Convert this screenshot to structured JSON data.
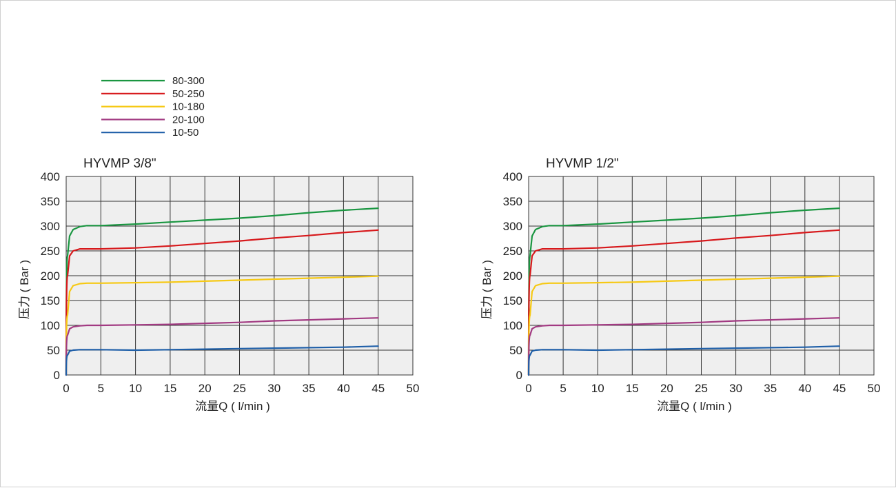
{
  "legend": [
    {
      "label": "80-300",
      "color": "#1a9641"
    },
    {
      "label": "50-250",
      "color": "#d7191c"
    },
    {
      "label": "10-180",
      "color": "#f6c915"
    },
    {
      "label": "20-100",
      "color": "#a23a82"
    },
    {
      "label": "10-50",
      "color": "#1f5fa8"
    }
  ],
  "chart_data": [
    {
      "type": "line",
      "title": "HYVMP 3/8\"",
      "xlabel": "流量Q ( l/min )",
      "ylabel": "压力 ( Bar )",
      "xlim": [
        0,
        50
      ],
      "ylim": [
        0,
        400
      ],
      "xticks": [
        "0",
        "5",
        "10",
        "15",
        "20",
        "25",
        "30",
        "35",
        "40",
        "45",
        "50"
      ],
      "yticks": [
        "0",
        "50",
        "100",
        "150",
        "200",
        "250",
        "300",
        "350",
        "400"
      ],
      "grid": true,
      "background": "#efefef",
      "series": [
        {
          "name": "80-300",
          "color": "#1a9641",
          "x": [
            0,
            0.2,
            0.5,
            1,
            2,
            3,
            5,
            10,
            15,
            20,
            25,
            30,
            35,
            40,
            45
          ],
          "y": [
            0,
            240,
            280,
            293,
            299,
            301,
            301,
            304,
            308,
            312,
            316,
            321,
            327,
            332,
            336
          ]
        },
        {
          "name": "50-250",
          "color": "#d7191c",
          "x": [
            0,
            0.2,
            0.5,
            1,
            2,
            3,
            5,
            10,
            15,
            20,
            25,
            30,
            35,
            40,
            45
          ],
          "y": [
            0,
            200,
            240,
            250,
            254,
            254,
            254,
            256,
            260,
            265,
            270,
            276,
            281,
            287,
            292
          ]
        },
        {
          "name": "10-180",
          "color": "#f6c915",
          "x": [
            0,
            0.2,
            0.5,
            1,
            2,
            3,
            5,
            10,
            15,
            20,
            25,
            30,
            35,
            40,
            45
          ],
          "y": [
            0,
            120,
            168,
            180,
            184,
            185,
            185,
            186,
            187,
            189,
            191,
            193,
            195,
            197,
            199
          ]
        },
        {
          "name": "20-100",
          "color": "#a23a82",
          "x": [
            0,
            0.2,
            0.5,
            1,
            2,
            3,
            5,
            10,
            15,
            20,
            25,
            30,
            35,
            40,
            45
          ],
          "y": [
            0,
            80,
            93,
            97,
            99,
            100,
            100,
            101,
            102,
            104,
            106,
            109,
            111,
            113,
            115
          ]
        },
        {
          "name": "10-50",
          "color": "#1f5fa8",
          "x": [
            0,
            0.2,
            0.5,
            1,
            2,
            3,
            5,
            10,
            15,
            20,
            25,
            30,
            35,
            40,
            45
          ],
          "y": [
            0,
            40,
            48,
            50,
            51,
            51,
            51,
            50,
            51,
            52,
            53,
            54,
            55,
            56,
            58
          ]
        }
      ]
    },
    {
      "type": "line",
      "title": "HYVMP 1/2\"",
      "xlabel": "流量Q ( l/min )",
      "ylabel": "压力 ( Bar )",
      "xlim": [
        0,
        50
      ],
      "ylim": [
        0,
        400
      ],
      "xticks": [
        "0",
        "5",
        "10",
        "15",
        "20",
        "25",
        "30",
        "35",
        "40",
        "45",
        "50"
      ],
      "yticks": [
        "0",
        "50",
        "100",
        "150",
        "200",
        "250",
        "300",
        "350",
        "400"
      ],
      "grid": true,
      "background": "#efefef",
      "series": [
        {
          "name": "80-300",
          "color": "#1a9641",
          "x": [
            0,
            0.2,
            0.5,
            1,
            2,
            3,
            5,
            10,
            15,
            20,
            25,
            30,
            35,
            40,
            45
          ],
          "y": [
            0,
            240,
            280,
            293,
            299,
            301,
            301,
            304,
            308,
            312,
            316,
            321,
            327,
            332,
            336
          ]
        },
        {
          "name": "50-250",
          "color": "#d7191c",
          "x": [
            0,
            0.2,
            0.5,
            1,
            2,
            3,
            5,
            10,
            15,
            20,
            25,
            30,
            35,
            40,
            45
          ],
          "y": [
            0,
            200,
            240,
            250,
            254,
            254,
            254,
            256,
            260,
            265,
            270,
            276,
            281,
            287,
            292
          ]
        },
        {
          "name": "10-180",
          "color": "#f6c915",
          "x": [
            0,
            0.2,
            0.5,
            1,
            2,
            3,
            5,
            10,
            15,
            20,
            25,
            30,
            35,
            40,
            45
          ],
          "y": [
            0,
            120,
            168,
            180,
            184,
            185,
            185,
            186,
            187,
            189,
            191,
            193,
            195,
            197,
            199
          ]
        },
        {
          "name": "20-100",
          "color": "#a23a82",
          "x": [
            0,
            0.2,
            0.5,
            1,
            2,
            3,
            5,
            10,
            15,
            20,
            25,
            30,
            35,
            40,
            45
          ],
          "y": [
            0,
            80,
            93,
            97,
            99,
            100,
            100,
            101,
            102,
            104,
            106,
            109,
            111,
            113,
            115
          ]
        },
        {
          "name": "10-50",
          "color": "#1f5fa8",
          "x": [
            0,
            0.2,
            0.5,
            1,
            2,
            3,
            5,
            10,
            15,
            20,
            25,
            30,
            35,
            40,
            45
          ],
          "y": [
            0,
            40,
            48,
            50,
            51,
            51,
            51,
            50,
            51,
            52,
            53,
            54,
            55,
            56,
            58
          ]
        }
      ]
    }
  ]
}
